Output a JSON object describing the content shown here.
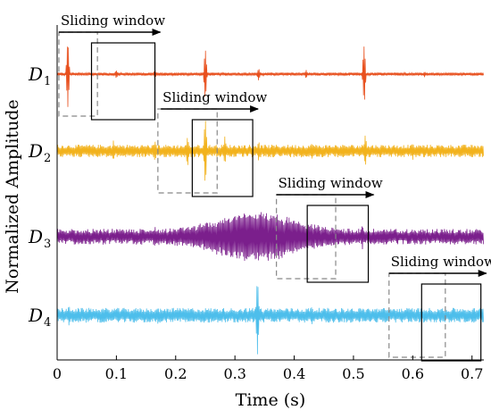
{
  "chart_data": {
    "type": "line",
    "xlabel": "Time (s)",
    "ylabel": "Normalized Amplitude",
    "xlim": [
      0,
      0.72
    ],
    "x_ticks": [
      0,
      0.1,
      0.2,
      0.3,
      0.4,
      0.5,
      0.6,
      0.7
    ],
    "x_tick_labels": [
      "0",
      "0.1",
      "0.2",
      "0.3",
      "0.4",
      "0.5",
      "0.6",
      "0.7"
    ],
    "grid": false,
    "colors": [
      "#e8501e",
      "#f2b21c",
      "#7b1f8c",
      "#4dbeeb"
    ],
    "series": [
      {
        "name": "D1",
        "label_base": "D",
        "label_sub": "1",
        "noise": 0.03,
        "spikes": [
          {
            "t": 0.018,
            "a": 1.0
          },
          {
            "t": 0.1,
            "a": 0.12
          },
          {
            "t": 0.165,
            "a": 0.12
          },
          {
            "t": 0.25,
            "a": 0.75
          },
          {
            "t": 0.34,
            "a": 0.18
          },
          {
            "t": 0.42,
            "a": 0.12
          },
          {
            "t": 0.518,
            "a": 0.88
          },
          {
            "t": 0.62,
            "a": 0.08
          }
        ],
        "bursts": []
      },
      {
        "name": "D2",
        "label_base": "D",
        "label_sub": "2",
        "noise": 0.12,
        "spikes": [
          {
            "t": 0.095,
            "a": 0.3
          },
          {
            "t": 0.165,
            "a": 0.32
          },
          {
            "t": 0.22,
            "a": 0.45
          },
          {
            "t": 0.25,
            "a": 1.0
          },
          {
            "t": 0.283,
            "a": 0.4
          },
          {
            "t": 0.34,
            "a": 0.3
          },
          {
            "t": 0.43,
            "a": 0.25
          },
          {
            "t": 0.52,
            "a": 0.5
          },
          {
            "t": 0.6,
            "a": 0.25
          },
          {
            "t": 0.7,
            "a": 0.2
          }
        ],
        "bursts": []
      },
      {
        "name": "D3",
        "label_base": "D",
        "label_sub": "3",
        "noise": 0.15,
        "spikes": [
          {
            "t": 0.165,
            "a": 0.3
          },
          {
            "t": 0.34,
            "a": 0.75
          },
          {
            "t": 0.515,
            "a": 0.35
          },
          {
            "t": 0.65,
            "a": 0.2
          }
        ],
        "bursts": [
          {
            "c": 0.335,
            "w": 0.085,
            "a": 0.38
          }
        ]
      },
      {
        "name": "D4",
        "label_base": "D",
        "label_sub": "4",
        "noise": 0.14,
        "spikes": [
          {
            "t": 0.02,
            "a": 0.3
          },
          {
            "t": 0.17,
            "a": 0.25
          },
          {
            "t": 0.338,
            "a": 1.15
          },
          {
            "t": 0.43,
            "a": 0.28
          },
          {
            "t": 0.65,
            "a": 0.22
          }
        ],
        "bursts": []
      }
    ],
    "annotations": [
      {
        "label": "Sliding window",
        "dashed_window": [
          0.003,
          0.068
        ],
        "solid_window": [
          0.058,
          0.165
        ],
        "arrow": [
          0.003,
          0.165
        ],
        "row": 0
      },
      {
        "label": "Sliding window",
        "dashed_window": [
          0.17,
          0.27
        ],
        "solid_window": [
          0.228,
          0.33
        ],
        "arrow": [
          0.175,
          0.33
        ],
        "row": 1
      },
      {
        "label": "Sliding window",
        "dashed_window": [
          0.37,
          0.47
        ],
        "solid_window": [
          0.422,
          0.525
        ],
        "arrow": [
          0.37,
          0.525
        ],
        "row": 2
      },
      {
        "label": "Sliding window",
        "dashed_window": [
          0.56,
          0.655
        ],
        "solid_window": [
          0.615,
          0.715
        ],
        "arrow": [
          0.56,
          0.715
        ],
        "row": 3
      }
    ]
  }
}
